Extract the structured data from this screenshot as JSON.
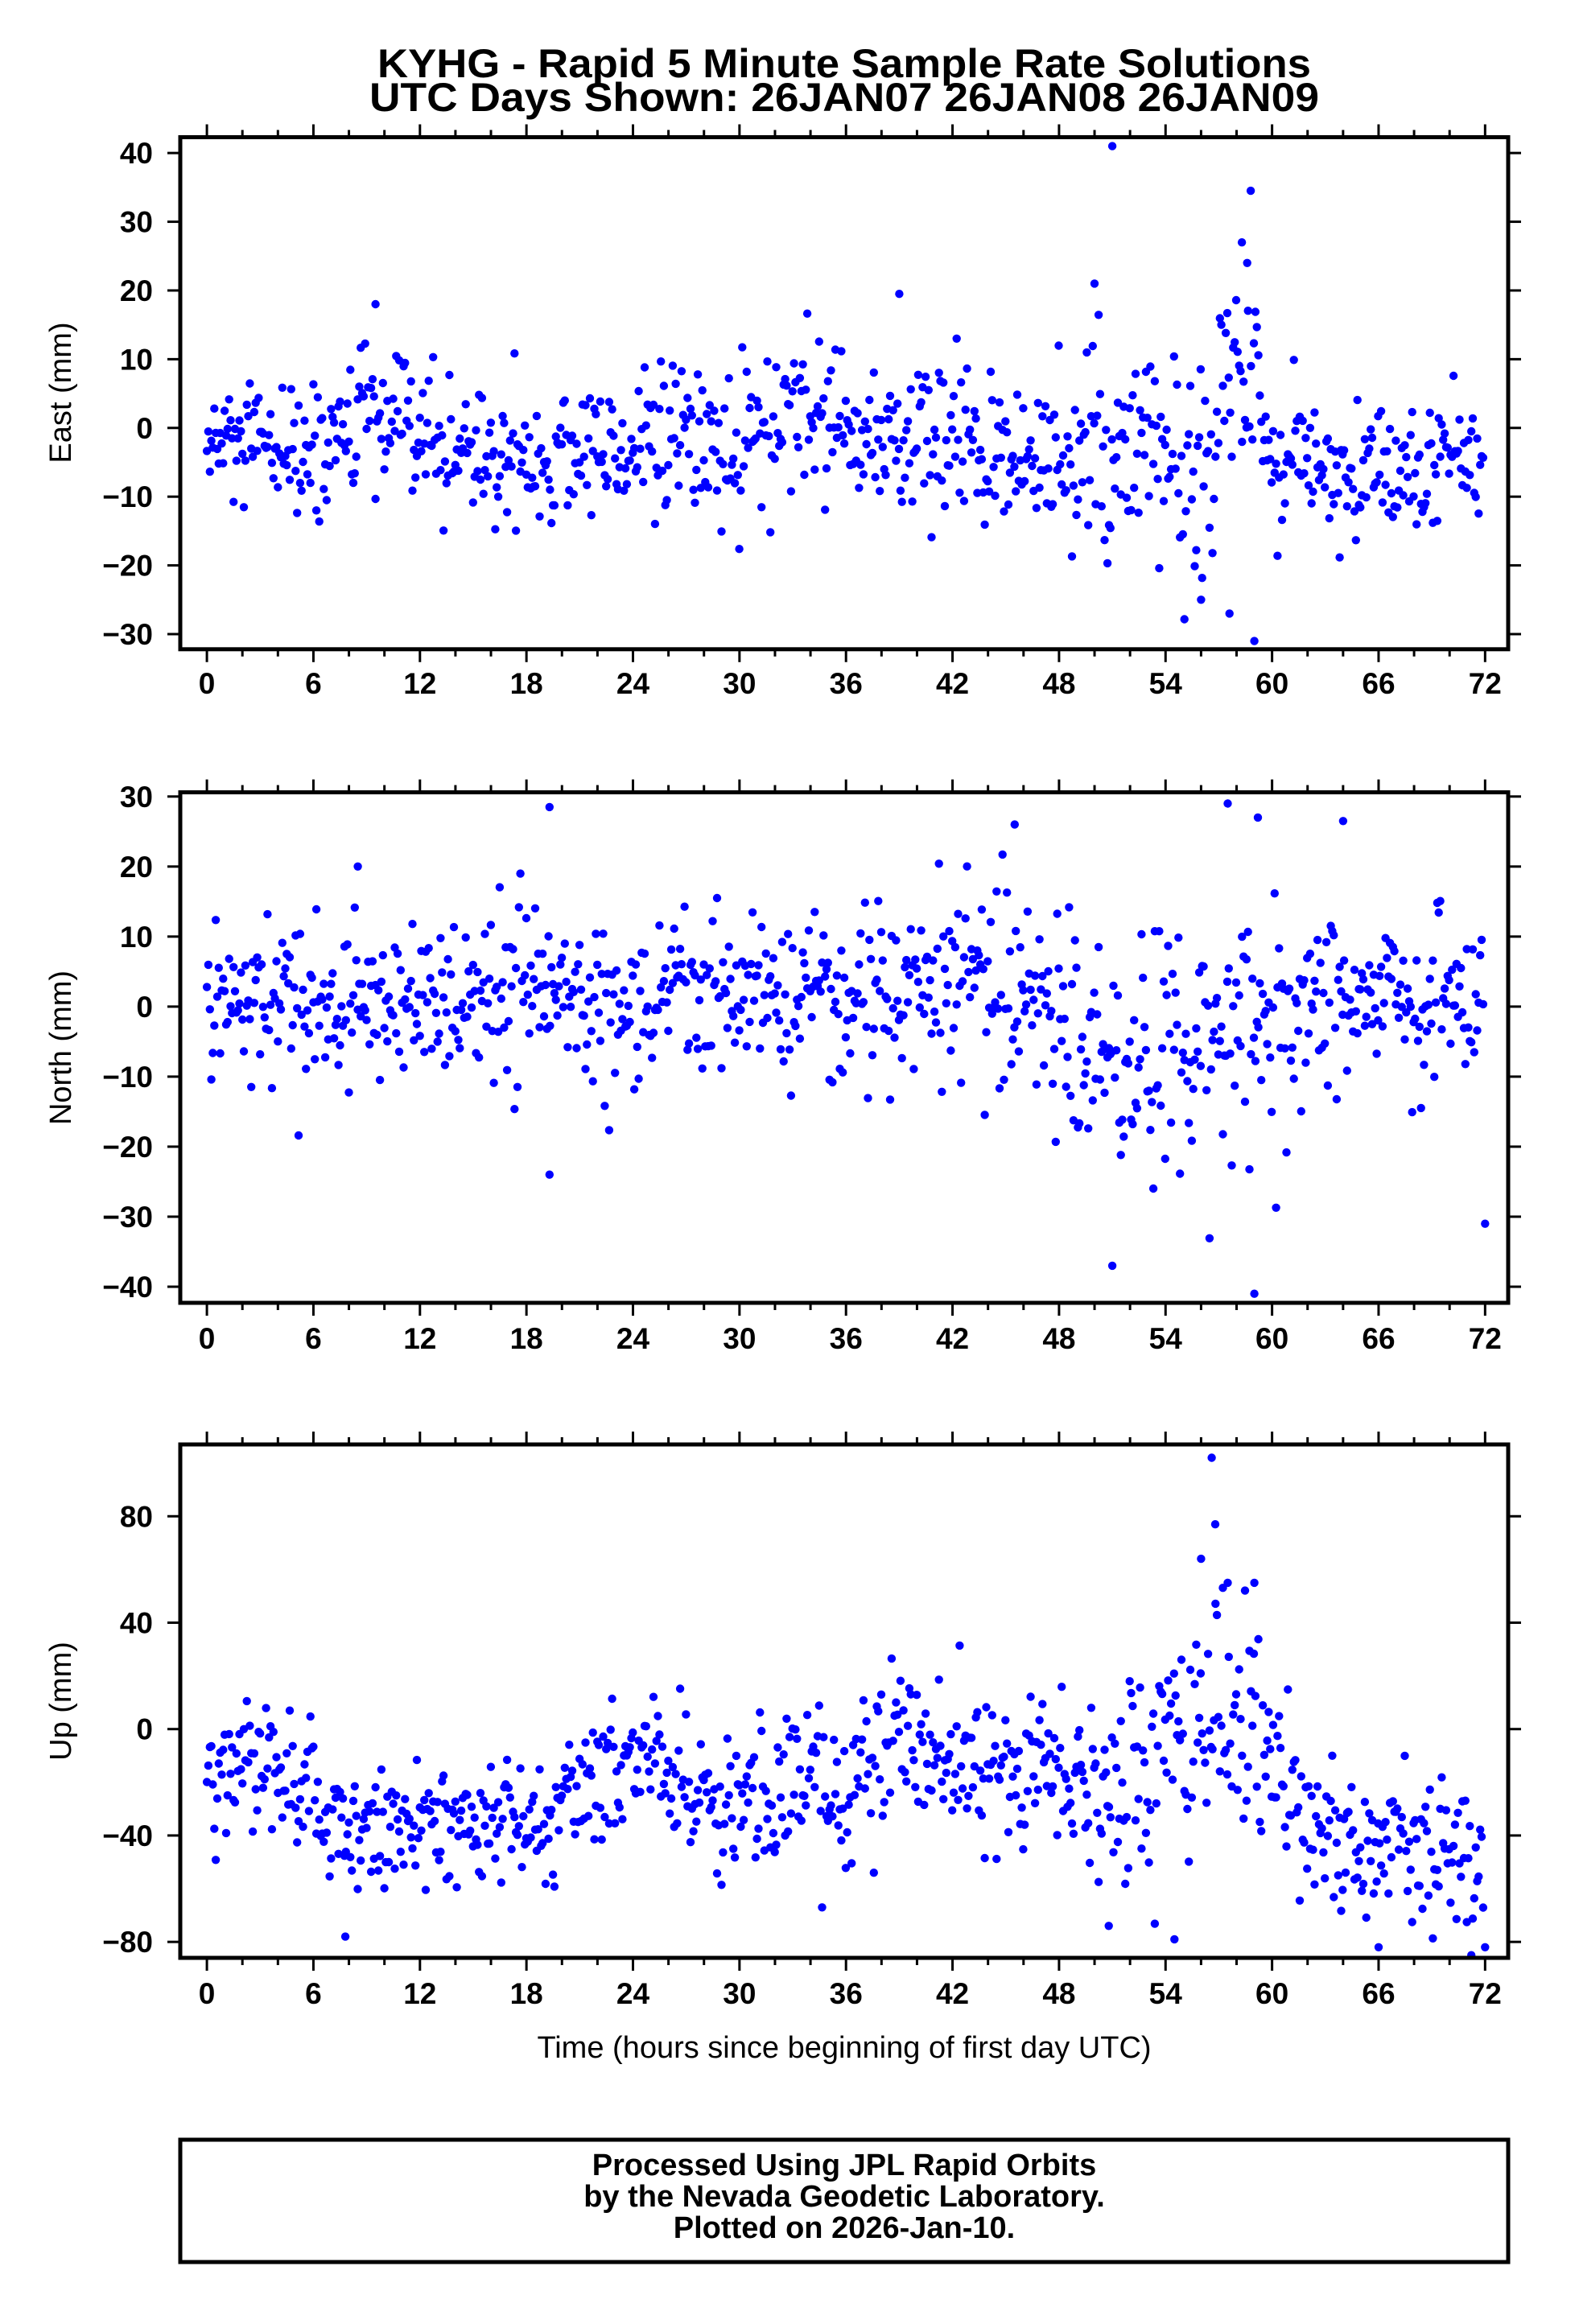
{
  "title_line1": "KYHG - Rapid 5 Minute Sample Rate Solutions",
  "title_line2": "UTC Days Shown:  26JAN07 26JAN08 26JAN09",
  "xlabel": "Time (hours since beginning of first day UTC)",
  "footer": [
    "Processed Using JPL Rapid Orbits",
    "by the Nevada Geodetic Laboratory.",
    "Plotted on 2026-Jan-10."
  ],
  "point_color": "#0000ff",
  "chart_data": [
    {
      "type": "scatter",
      "ylabel": "East (mm)",
      "xlim": [
        -1.5,
        73.3
      ],
      "ylim": [
        -32.2,
        42.3
      ],
      "x_ticks": [
        0,
        6,
        12,
        18,
        24,
        30,
        36,
        42,
        48,
        54,
        60,
        66,
        72
      ],
      "y_ticks": [
        40,
        30,
        20,
        10,
        0,
        -10,
        -20,
        -30
      ],
      "sample_interval_hours": 0.0833,
      "trend_nodes": [
        [
          0,
          -3
        ],
        [
          6,
          -4
        ],
        [
          9,
          1
        ],
        [
          12,
          -2
        ],
        [
          18,
          -5
        ],
        [
          24,
          -2
        ],
        [
          30,
          -3
        ],
        [
          34,
          2
        ],
        [
          36,
          0
        ],
        [
          42,
          -3
        ],
        [
          48,
          -4
        ],
        [
          52,
          -4
        ],
        [
          55,
          -8
        ],
        [
          57,
          2
        ],
        [
          58.5,
          14
        ],
        [
          60,
          -4
        ],
        [
          66,
          -8
        ],
        [
          72,
          -4
        ]
      ],
      "sigma_nodes": [
        [
          0,
          5
        ],
        [
          48,
          6
        ],
        [
          54,
          8
        ],
        [
          58,
          9
        ],
        [
          60,
          5
        ],
        [
          72,
          5
        ]
      ],
      "outliers": [
        [
          51,
          41
        ],
        [
          58.8,
          34.5
        ],
        [
          59,
          -31
        ],
        [
          57.6,
          -27
        ],
        [
          39,
          19.5
        ],
        [
          50,
          21
        ],
        [
          9.5,
          18
        ],
        [
          56,
          -25
        ],
        [
          58.3,
          27
        ],
        [
          58.6,
          24
        ]
      ]
    },
    {
      "type": "scatter",
      "ylabel": "North (mm)",
      "xlim": [
        -1.5,
        73.3
      ],
      "ylim": [
        -42.3,
        30.6
      ],
      "x_ticks": [
        0,
        6,
        12,
        18,
        24,
        30,
        36,
        42,
        48,
        54,
        60,
        66,
        72
      ],
      "y_ticks": [
        30,
        20,
        10,
        0,
        -10,
        -20,
        -30,
        -40
      ],
      "sample_interval_hours": 0.0833,
      "trend_nodes": [
        [
          0,
          1
        ],
        [
          6,
          0
        ],
        [
          12,
          1
        ],
        [
          18,
          2
        ],
        [
          24,
          0
        ],
        [
          30,
          2
        ],
        [
          36,
          0
        ],
        [
          42,
          3
        ],
        [
          47,
          3
        ],
        [
          49,
          -5
        ],
        [
          54,
          -6
        ],
        [
          60,
          -2
        ],
        [
          66,
          2
        ],
        [
          72,
          1
        ]
      ],
      "sigma_nodes": [
        [
          0,
          6
        ],
        [
          36,
          6
        ],
        [
          42,
          7
        ],
        [
          48,
          9
        ],
        [
          60,
          9
        ],
        [
          66,
          6
        ],
        [
          72,
          6
        ]
      ],
      "outliers": [
        [
          19.3,
          28.5
        ],
        [
          19.3,
          -24
        ],
        [
          57.5,
          29
        ],
        [
          59,
          -41
        ],
        [
          51,
          -37
        ],
        [
          72,
          -31
        ],
        [
          45.5,
          26
        ],
        [
          64,
          26.5
        ],
        [
          59.2,
          27
        ],
        [
          8.5,
          20
        ]
      ]
    },
    {
      "type": "scatter",
      "ylabel": "Up (mm)",
      "xlim": [
        -1.5,
        73.3
      ],
      "ylim": [
        -86,
        107
      ],
      "x_ticks": [
        0,
        6,
        12,
        18,
        24,
        30,
        36,
        42,
        48,
        54,
        60,
        66,
        72
      ],
      "y_ticks": [
        80,
        40,
        0,
        -40,
        -80
      ],
      "sample_interval_hours": 0.0833,
      "trend_nodes": [
        [
          0,
          -15
        ],
        [
          4,
          -12
        ],
        [
          7,
          -40
        ],
        [
          12,
          -35
        ],
        [
          18,
          -38
        ],
        [
          22,
          -25
        ],
        [
          25,
          -8
        ],
        [
          28,
          -30
        ],
        [
          33,
          -22
        ],
        [
          36,
          -25
        ],
        [
          39,
          -5
        ],
        [
          44,
          -12
        ],
        [
          48,
          -15
        ],
        [
          51,
          -25
        ],
        [
          54,
          -5
        ],
        [
          57,
          10
        ],
        [
          60,
          0
        ],
        [
          62,
          -40
        ],
        [
          66,
          -45
        ],
        [
          72,
          -45
        ]
      ],
      "sigma_nodes": [
        [
          0,
          12
        ],
        [
          48,
          16
        ],
        [
          54,
          22
        ],
        [
          58,
          28
        ],
        [
          61,
          20
        ],
        [
          62,
          14
        ],
        [
          72,
          14
        ]
      ],
      "outliers": [
        [
          56.6,
          102
        ],
        [
          56.8,
          77
        ],
        [
          56,
          64
        ],
        [
          57.5,
          55
        ],
        [
          59,
          55
        ],
        [
          66,
          -82
        ],
        [
          72,
          -82
        ],
        [
          7.8,
          -78
        ],
        [
          54.5,
          -79
        ],
        [
          50.8,
          -74
        ]
      ]
    }
  ]
}
